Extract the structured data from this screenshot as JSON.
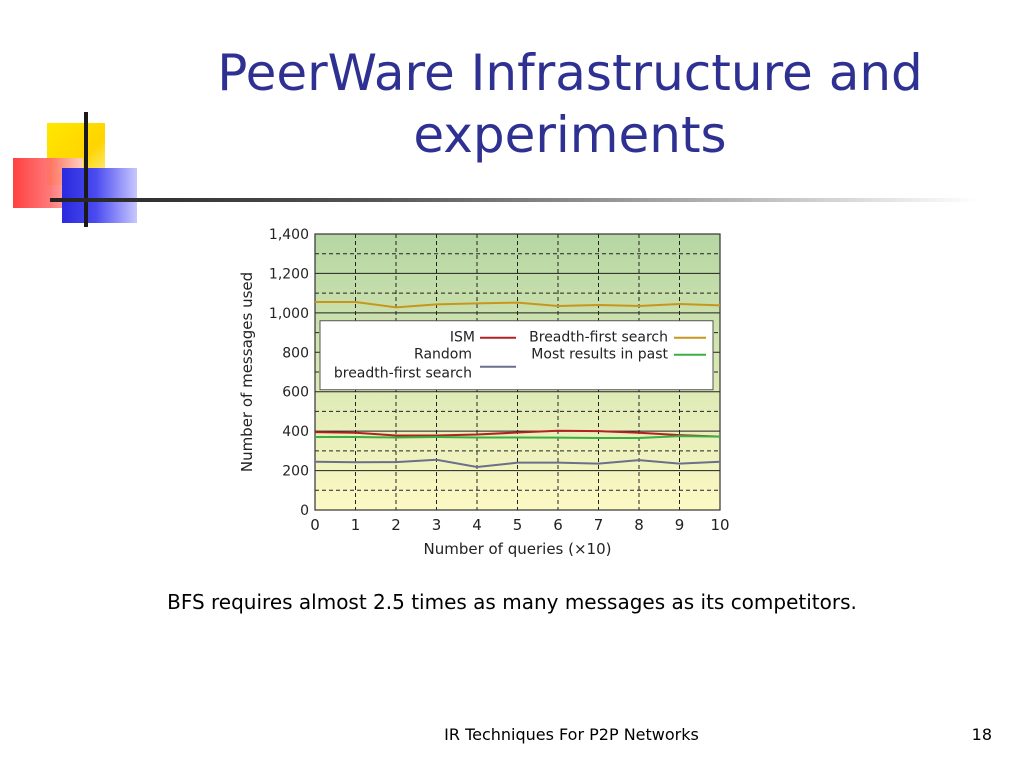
{
  "slide": {
    "title_line1": "PeerWare Infrastructure and",
    "title_line2": "experiments",
    "caption": "BFS requires almost 2.5 times as many messages as its competitors.",
    "footer": "IR Techniques For P2P Networks",
    "page_number": "18"
  },
  "chart_data": {
    "type": "line",
    "title": "",
    "xlabel": "Number of queries (×10)",
    "ylabel": "Number of messages used",
    "x": [
      0,
      1,
      2,
      3,
      4,
      5,
      6,
      7,
      8,
      9,
      10
    ],
    "xlim": [
      0,
      10
    ],
    "ylim": [
      0,
      1400
    ],
    "x_ticks": [
      "0",
      "1",
      "2",
      "3",
      "4",
      "5",
      "6",
      "7",
      "8",
      "9",
      "10"
    ],
    "y_ticks": [
      {
        "value": 0,
        "label": "0"
      },
      {
        "value": 200,
        "label": "200"
      },
      {
        "value": 400,
        "label": "400"
      },
      {
        "value": 600,
        "label": "600"
      },
      {
        "value": 800,
        "label": "800"
      },
      {
        "value": 1000,
        "label": "1,000"
      },
      {
        "value": 1200,
        "label": "1,200"
      },
      {
        "value": 1400,
        "label": "1,400"
      }
    ],
    "grid": true,
    "legend_position": "center",
    "series": [
      {
        "name": "ISM",
        "color": "#b22222",
        "values": [
          395,
          392,
          378,
          378,
          383,
          393,
          402,
          400,
          392,
          380,
          372
        ]
      },
      {
        "name": "Random breadth-first search",
        "color": "#6b6f8c",
        "values": [
          245,
          242,
          243,
          255,
          218,
          240,
          240,
          235,
          253,
          235,
          245
        ]
      },
      {
        "name": "Breadth-first search",
        "color": "#c8961e",
        "values": [
          1055,
          1055,
          1028,
          1043,
          1048,
          1052,
          1035,
          1040,
          1035,
          1045,
          1038
        ]
      },
      {
        "name": "Most results in past",
        "color": "#3cb043",
        "values": [
          370,
          370,
          368,
          370,
          368,
          368,
          367,
          365,
          365,
          375,
          372
        ]
      }
    ],
    "legend_entries": [
      {
        "line1": "ISM",
        "line2": "",
        "color": "#b22222"
      },
      {
        "line1": "Random",
        "line2": "breadth-first search",
        "color": "#6b6f8c"
      },
      {
        "line1": "Breadth-first search",
        "line2": "",
        "color": "#c8961e"
      },
      {
        "line1": "Most results in past",
        "line2": "",
        "color": "#3cb043"
      }
    ],
    "background_gradient": [
      "#b5d6a3",
      "#fdf9c4"
    ]
  }
}
